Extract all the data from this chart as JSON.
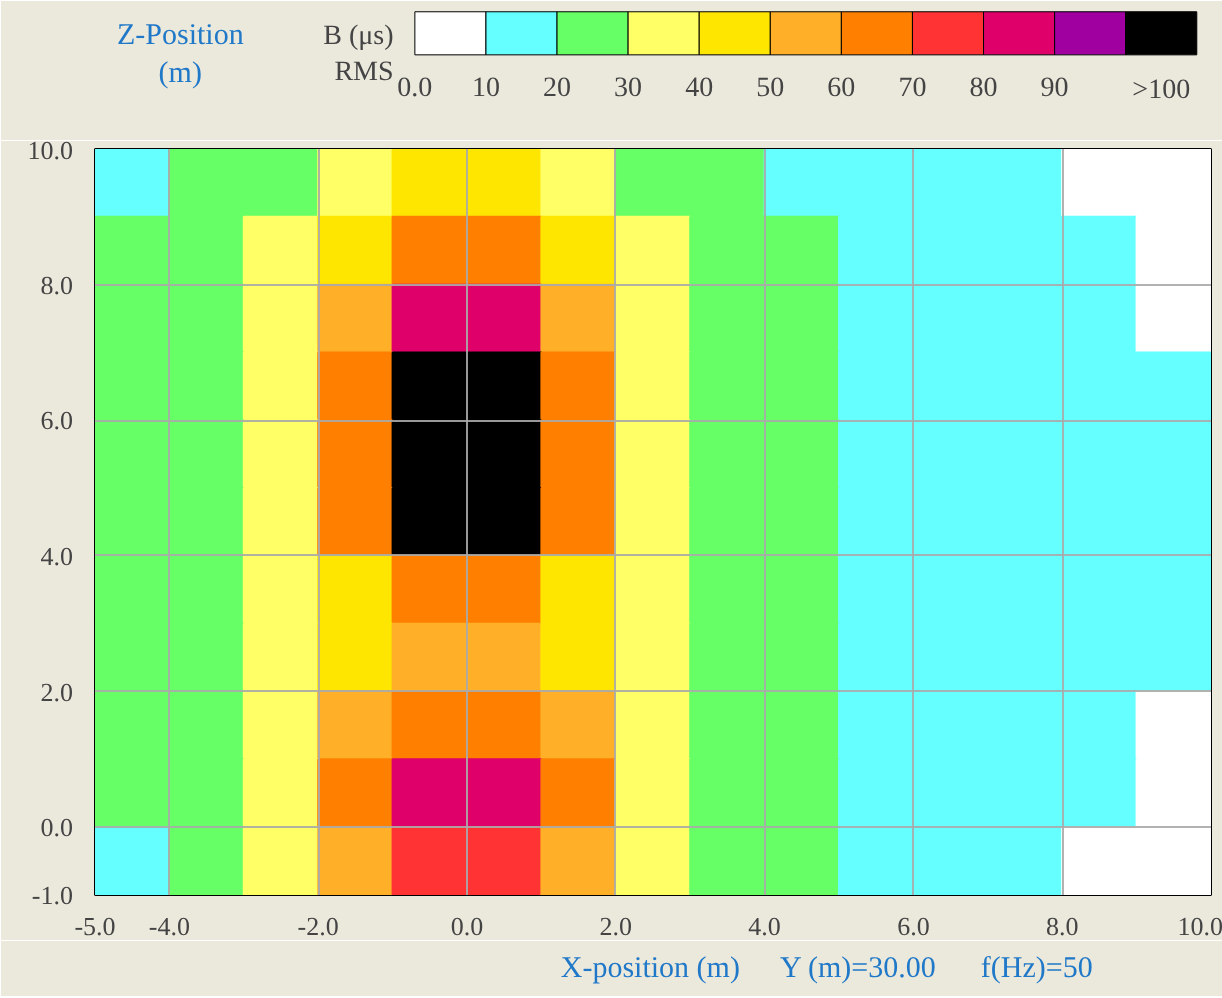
{
  "chart_data": {
    "type": "heatmap",
    "ylabel": "Z-Position (m)",
    "xlabel": "X-position (m)",
    "clabel": "B (μs) RMS",
    "annotations": [
      "Y (m)=30.00",
      "f(Hz)=50"
    ],
    "x": [
      -4.5,
      -3.5,
      -2.5,
      -1.5,
      -0.5,
      0.5,
      1.5,
      2.5,
      3.5,
      4.5,
      5.5,
      6.5,
      7.5,
      8.5,
      9.5
    ],
    "cells": [
      [
        15,
        25,
        25,
        35,
        45,
        45,
        35,
        25,
        25,
        15,
        15,
        15,
        15,
        5,
        5
      ],
      [
        25,
        25,
        35,
        45,
        65,
        65,
        45,
        35,
        25,
        25,
        15,
        15,
        15,
        15,
        5
      ],
      [
        25,
        25,
        35,
        55,
        85,
        85,
        55,
        35,
        25,
        25,
        15,
        15,
        15,
        15,
        5
      ],
      [
        25,
        25,
        35,
        65,
        105,
        105,
        65,
        35,
        25,
        25,
        15,
        15,
        15,
        15,
        15
      ],
      [
        25,
        25,
        35,
        65,
        105,
        105,
        65,
        35,
        25,
        25,
        15,
        15,
        15,
        15,
        15
      ],
      [
        25,
        25,
        35,
        65,
        105,
        105,
        65,
        35,
        25,
        25,
        15,
        15,
        15,
        15,
        15
      ],
      [
        25,
        25,
        35,
        45,
        65,
        65,
        45,
        35,
        25,
        25,
        15,
        15,
        15,
        15,
        15
      ],
      [
        25,
        25,
        35,
        45,
        55,
        55,
        45,
        35,
        25,
        25,
        15,
        15,
        15,
        15,
        15
      ],
      [
        25,
        25,
        35,
        55,
        65,
        65,
        55,
        35,
        25,
        25,
        15,
        15,
        15,
        15,
        5
      ],
      [
        25,
        25,
        35,
        65,
        85,
        85,
        65,
        35,
        25,
        25,
        15,
        15,
        15,
        15,
        5
      ],
      [
        15,
        25,
        35,
        55,
        75,
        75,
        55,
        35,
        25,
        25,
        15,
        15,
        15,
        5,
        5
      ]
    ],
    "colors": [
      "#ffffff",
      "#66ffff",
      "#66ff66",
      "#ffff66",
      "#ffe600",
      "#ffb028",
      "#ff7f00",
      "#ff3333",
      "#e0006a",
      "#a000a0",
      "#000000"
    ],
    "clim": [
      0,
      110
    ],
    "cticks": [
      {
        "value": 0,
        "label": "0.0"
      },
      10,
      20,
      30,
      40,
      50,
      60,
      70,
      80,
      90,
      {
        "value": 105,
        "label": ">100"
      }
    ],
    "xlim": [
      -5,
      10
    ],
    "ylim": [
      -1,
      10
    ],
    "xticks": [
      {
        "value": -5,
        "label": "-5.0"
      },
      {
        "value": -4,
        "label": "-4.0"
      },
      {
        "value": -2,
        "label": "-2.0"
      },
      {
        "value": 0,
        "label": "0.0"
      },
      {
        "value": 2,
        "label": "2.0"
      },
      {
        "value": 4,
        "label": "4.0"
      },
      {
        "value": 6,
        "label": "6.0"
      },
      {
        "value": 8,
        "label": "8.0"
      },
      {
        "value": 10,
        "label": "10.0"
      }
    ],
    "yticks": [
      {
        "value": -1,
        "label": "-1.0"
      },
      {
        "value": 0,
        "label": "0.0"
      },
      {
        "value": 2,
        "label": "2.0"
      },
      {
        "value": 4,
        "label": "4.0"
      },
      {
        "value": 6,
        "label": "6.0"
      },
      {
        "value": 8,
        "label": "8.0"
      },
      {
        "value": 10,
        "label": "10.0"
      }
    ],
    "grid": true
  }
}
